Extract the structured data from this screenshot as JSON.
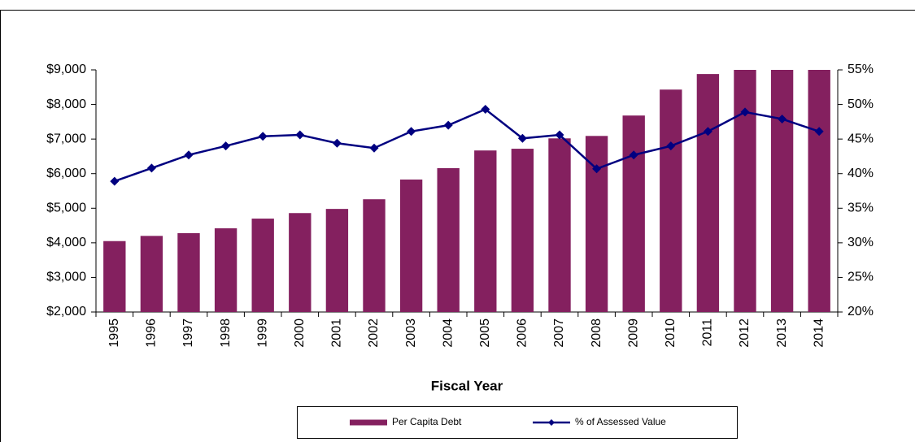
{
  "chart_data": {
    "type": "bar",
    "x_label": "Fiscal Year",
    "categories": [
      "1995",
      "1996",
      "1997",
      "1998",
      "1999",
      "2000",
      "2001",
      "2002",
      "2003",
      "2004",
      "2005",
      "2006",
      "2007",
      "2008",
      "2009",
      "2010",
      "2011",
      "2012",
      "2013",
      "2014"
    ],
    "series": [
      {
        "name": "Per Capita Debt",
        "type": "bar",
        "color": "#84205f",
        "axis": "y",
        "values": [
          4050,
          4200,
          4280,
          4420,
          4700,
          4860,
          4980,
          5260,
          5830,
          6160,
          6670,
          6720,
          7020,
          7090,
          7680,
          8430,
          8880,
          9000,
          9000,
          9000
        ]
      },
      {
        "name": "% of Assessed Value",
        "type": "line",
        "color": "#000080",
        "axis": "y2",
        "values": [
          38.9,
          40.8,
          42.7,
          44.0,
          45.4,
          45.6,
          44.4,
          43.7,
          46.1,
          47.0,
          49.3,
          45.1,
          45.6,
          40.7,
          42.7,
          44.0,
          46.1,
          48.9,
          47.9,
          46.1
        ]
      }
    ],
    "ylim": [
      2000,
      9000
    ],
    "yticks": [
      {
        "value": 2000,
        "label": "$2,000"
      },
      {
        "value": 3000,
        "label": "$3,000"
      },
      {
        "value": 4000,
        "label": "$4,000"
      },
      {
        "value": 5000,
        "label": "$5,000"
      },
      {
        "value": 6000,
        "label": "$6,000"
      },
      {
        "value": 7000,
        "label": "$7,000"
      },
      {
        "value": 8000,
        "label": "$8,000"
      },
      {
        "value": 9000,
        "label": "$9,000"
      }
    ],
    "y2lim": [
      20,
      55
    ],
    "y2ticks": [
      {
        "value": 20,
        "label": "20%"
      },
      {
        "value": 25,
        "label": "25%"
      },
      {
        "value": 30,
        "label": "30%"
      },
      {
        "value": 35,
        "label": "35%"
      },
      {
        "value": 40,
        "label": "40%"
      },
      {
        "value": 45,
        "label": "45%"
      },
      {
        "value": 50,
        "label": "50%"
      },
      {
        "value": 55,
        "label": "55%"
      }
    ],
    "grid": false,
    "legend": "bottom"
  }
}
